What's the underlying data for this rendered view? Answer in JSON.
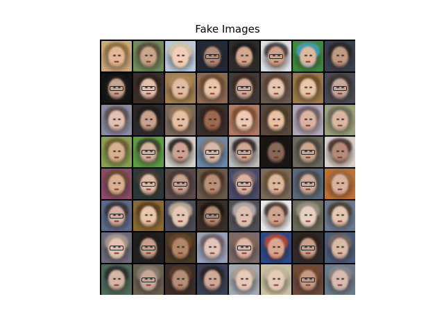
{
  "figure": {
    "title": "Fake Images"
  },
  "grid": {
    "rows": 8,
    "cols": 8,
    "tiles": [
      {
        "bg": "#c9a87a",
        "skin": "#e2b898",
        "hair": "#8a6a3a",
        "glasses": false
      },
      {
        "bg": "#6f8c5a",
        "skin": "#c9a58c",
        "hair": "#5a4a3a",
        "glasses": false
      },
      {
        "bg": "#b7c7d8",
        "skin": "#f0ceb8",
        "hair": "#d8c8a0",
        "glasses": false
      },
      {
        "bg": "#1f2a3a",
        "skin": "#b08e7a",
        "hair": "#2a2a2a",
        "glasses": true
      },
      {
        "bg": "#2c2c2c",
        "skin": "#d2a890",
        "hair": "#1e1a18",
        "glasses": false
      },
      {
        "bg": "#dcdfe4",
        "skin": "#d0a288",
        "hair": "#3a3030",
        "glasses": true
      },
      {
        "bg": "#3a8a3a",
        "skin": "#e0b8a0",
        "hair": "#4aa0c0",
        "glasses": false
      },
      {
        "bg": "#3a4050",
        "skin": "#c09a80",
        "hair": "#2a2420",
        "glasses": false
      },
      {
        "bg": "#121212",
        "skin": "#c8a48e",
        "hair": "#1a1a1a",
        "glasses": true
      },
      {
        "bg": "#3a2e28",
        "skin": "#e6c0a8",
        "hair": "#2a201a",
        "glasses": true
      },
      {
        "bg": "#a08050",
        "skin": "#e0bca0",
        "hair": "#b08a5a",
        "glasses": false
      },
      {
        "bg": "#8a6a50",
        "skin": "#e8c4a8",
        "hair": "#6a4a30",
        "glasses": false
      },
      {
        "bg": "#403a38",
        "skin": "#d2ac98",
        "hair": "#3a2a20",
        "glasses": true
      },
      {
        "bg": "#6a5a50",
        "skin": "#e6c6b0",
        "hair": "#5a4030",
        "glasses": false
      },
      {
        "bg": "#9a7a4a",
        "skin": "#e8c8a8",
        "hair": "#6a4a28",
        "glasses": false
      },
      {
        "bg": "#4a4a52",
        "skin": "#c8a898",
        "hair": "#3a3432",
        "glasses": true
      },
      {
        "bg": "#8a8aa0",
        "skin": "#e0c0b0",
        "hair": "#5a4a48",
        "glasses": false
      },
      {
        "bg": "#2a2a2e",
        "skin": "#c8a28a",
        "hair": "#1e1a18",
        "glasses": false
      },
      {
        "bg": "#7a6a5a",
        "skin": "#e4c0a4",
        "hair": "#9a7a5a",
        "glasses": false
      },
      {
        "bg": "#3a3230",
        "skin": "#9a6a50",
        "hair": "#3a2018",
        "glasses": false
      },
      {
        "bg": "#b07a60",
        "skin": "#eccab4",
        "hair": "#7a4a30",
        "glasses": false
      },
      {
        "bg": "#5a4a3a",
        "skin": "#e8c2a2",
        "hair": "#4a3a2a",
        "glasses": false
      },
      {
        "bg": "#b0a8b8",
        "skin": "#dab4a0",
        "hair": "#6a5a60",
        "glasses": false
      },
      {
        "bg": "#9aa07a",
        "skin": "#d8b8a0",
        "hair": "#6a6a5a",
        "glasses": false
      },
      {
        "bg": "#8aa050",
        "skin": "#d8b090",
        "hair": "#6a5a30",
        "glasses": false
      },
      {
        "bg": "#5aa040",
        "skin": "#d4b2a0",
        "hair": "#3a3a30",
        "glasses": true
      },
      {
        "bg": "#d0d0c8",
        "skin": "#caa490",
        "hair": "#1e1a18",
        "glasses": false
      },
      {
        "bg": "#6a88a8",
        "skin": "#d8b8a8",
        "hair": "#8a7a6a",
        "glasses": true
      },
      {
        "bg": "#b8b8b8",
        "skin": "#d0a894",
        "hair": "#2a1e1a",
        "glasses": true
      },
      {
        "bg": "#1a1614",
        "skin": "#8a6858",
        "hair": "#1a1412",
        "glasses": false
      },
      {
        "bg": "#6a6a60",
        "skin": "#caa890",
        "hair": "#4a4238",
        "glasses": true
      },
      {
        "bg": "#d8d0c8",
        "skin": "#b48a78",
        "hair": "#3a2a24",
        "glasses": false
      },
      {
        "bg": "#8a4a6a",
        "skin": "#d8b090",
        "hair": "#6a4a30",
        "glasses": false
      },
      {
        "bg": "#2a3a3a",
        "skin": "#e0bca4",
        "hair": "#4a3a30",
        "glasses": true
      },
      {
        "bg": "#5a4a48",
        "skin": "#caa290",
        "hair": "#4a3a34",
        "glasses": true
      },
      {
        "bg": "#6a5a4a",
        "skin": "#b89078",
        "hair": "#4a3020",
        "glasses": false
      },
      {
        "bg": "#4a4a6a",
        "skin": "#d8b4a0",
        "hair": "#7a6a6a",
        "glasses": true
      },
      {
        "bg": "#7a6a58",
        "skin": "#dcb8a0",
        "hair": "#6a5030",
        "glasses": false
      },
      {
        "bg": "#5a6a7a",
        "skin": "#d0ae9a",
        "hair": "#4a4a4a",
        "glasses": true
      },
      {
        "bg": "#c07030",
        "skin": "#d8b4a0",
        "hair": "#9a6a40",
        "glasses": false
      },
      {
        "bg": "#5a6a8a",
        "skin": "#d4b0a0",
        "hair": "#3a3030",
        "glasses": true
      },
      {
        "bg": "#8a6a30",
        "skin": "#e8c8a8",
        "hair": "#5a3a20",
        "glasses": false
      },
      {
        "bg": "#4a4a58",
        "skin": "#e4c6b4",
        "hair": "#c8b8a0",
        "glasses": false
      },
      {
        "bg": "#3a3028",
        "skin": "#b08a70",
        "hair": "#1a1410",
        "glasses": true
      },
      {
        "bg": "#505058",
        "skin": "#dcc0b0",
        "hair": "#c0b8b0",
        "glasses": false
      },
      {
        "bg": "#e8e8ea",
        "skin": "#d0a48e",
        "hair": "#3a2a24",
        "glasses": false
      },
      {
        "bg": "#6a6a58",
        "skin": "#e8d0c0",
        "hair": "#a0988a",
        "glasses": false
      },
      {
        "bg": "#6a7a90",
        "skin": "#e4c6b2",
        "hair": "#4a3a2a",
        "glasses": false
      },
      {
        "bg": "#6a6a7a",
        "skin": "#e2c2b0",
        "hair": "#b0a090",
        "glasses": true
      },
      {
        "bg": "#202020",
        "skin": "#c8a08a",
        "hair": "#1e1a18",
        "glasses": true
      },
      {
        "bg": "#4a3a28",
        "skin": "#b08668",
        "hair": "#6a4a2a",
        "glasses": false
      },
      {
        "bg": "#9aa0b8",
        "skin": "#e4c6b8",
        "hair": "#6a5a5a",
        "glasses": false
      },
      {
        "bg": "#7a6a6a",
        "skin": "#dcb8a8",
        "hair": "#8a6a5a",
        "glasses": true
      },
      {
        "bg": "#2a4a8a",
        "skin": "#d8a890",
        "hair": "#c04a30",
        "glasses": false
      },
      {
        "bg": "#2e2a28",
        "skin": "#c8a08a",
        "hair": "#2a201a",
        "glasses": true
      },
      {
        "bg": "#4a5a7a",
        "skin": "#dcbaa8",
        "hair": "#7a6a60",
        "glasses": false
      },
      {
        "bg": "#4a6a5a",
        "skin": "#d4b6a4",
        "hair": "#2a2a2a",
        "glasses": false
      },
      {
        "bg": "#6a6050",
        "skin": "#caa898",
        "hair": "#8a8074",
        "glasses": true
      },
      {
        "bg": "#3a2e2a",
        "skin": "#b48e78",
        "hair": "#5a3a2a",
        "glasses": false
      },
      {
        "bg": "#3a4058",
        "skin": "#d0aa98",
        "hair": "#2a2220",
        "glasses": false
      },
      {
        "bg": "#a0a8b0",
        "skin": "#e8cabb",
        "hair": "#b0a090",
        "glasses": false
      },
      {
        "bg": "#c8c0a0",
        "skin": "#e6ccb8",
        "hair": "#c8b8a0",
        "glasses": false
      },
      {
        "bg": "#6a4a3a",
        "skin": "#c49a84",
        "hair": "#7a4a2a",
        "glasses": true
      },
      {
        "bg": "#6a7a88",
        "skin": "#d8bcb0",
        "hair": "#8a8a8a",
        "glasses": false
      }
    ]
  }
}
